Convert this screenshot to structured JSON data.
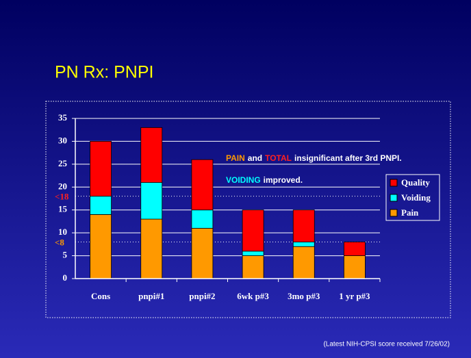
{
  "title": "PN Rx: PNPI",
  "footer": "(Latest NIH-CPSI score received 7/26/02)",
  "chart_data": {
    "type": "stacked_bar",
    "categories": [
      "Cons",
      "pnpi#1",
      "pnpi#2",
      "6wk p#3",
      "3mo p#3",
      "1 yr p#3"
    ],
    "series": [
      {
        "name": "Pain",
        "color": "#ff9900",
        "values": [
          14,
          13,
          11,
          5,
          7,
          5
        ]
      },
      {
        "name": "Voiding",
        "color": "#00ffff",
        "values": [
          4,
          8,
          4,
          1,
          1,
          0
        ]
      },
      {
        "name": "Quality",
        "color": "#ff0000",
        "values": [
          12,
          12,
          11,
          9,
          7,
          3
        ]
      }
    ],
    "ylim": [
      0,
      35
    ],
    "yticks": [
      0,
      5,
      10,
      15,
      20,
      25,
      30,
      35
    ],
    "grid": true,
    "legend": "right",
    "reference_lines": [
      {
        "value": 18,
        "label": "<18",
        "color": "#ff2020"
      },
      {
        "value": 8,
        "label": "<8",
        "color": "#ff9900"
      }
    ],
    "annotations": [
      {
        "parts": [
          {
            "text": "PAIN",
            "color": "#ff9900"
          },
          {
            "text": "and",
            "color": "#ffffff"
          },
          {
            "text": "TOTAL",
            "color": "#ff2020"
          },
          {
            "text": "insignificant after 3rd PNPI.",
            "color": "#ffffff"
          }
        ]
      },
      {
        "parts": [
          {
            "text": "VOIDING",
            "color": "#00ffff"
          },
          {
            "text": "improved",
            "color": "#ffffff"
          },
          {
            "text": ".",
            "color": "#ffffff"
          }
        ]
      }
    ]
  }
}
